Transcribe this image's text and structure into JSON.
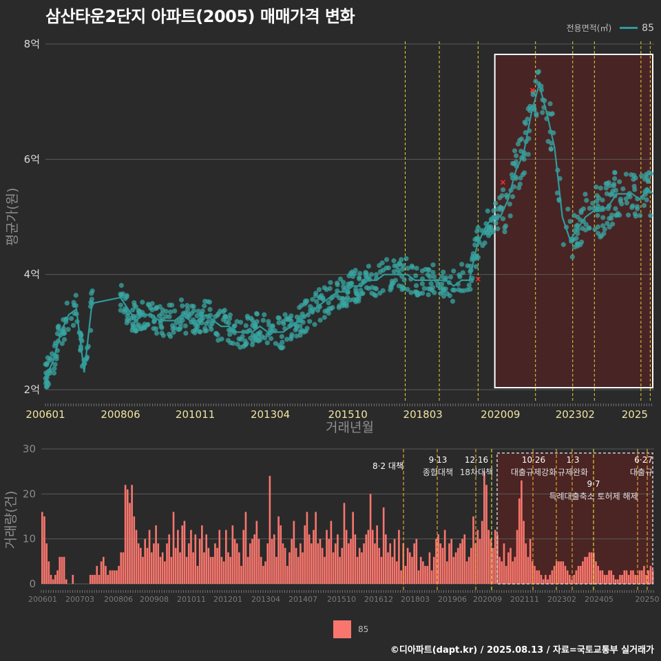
{
  "title": "삼산타운2단지 아파트(2005) 매매가격 변화",
  "legend_top": {
    "title": "전용면적(㎡)",
    "series": "85",
    "color": "#2e9c9c"
  },
  "legend_bottom": {
    "series": "85",
    "color": "#f8766d"
  },
  "credit": "©디아파트(dapt.kr) / 2025.08.13 / 자료=국토교통부 실거래가",
  "chart_data": [
    {
      "type": "line",
      "ylabel": "평균가(원)",
      "xlabel": "거래년월",
      "ylim": [
        2,
        8
      ],
      "y_unit": "억",
      "yticks": [
        2,
        4,
        6,
        8
      ],
      "ytick_labels": [
        "2억",
        "4억",
        "6억",
        "8억"
      ],
      "xticks": [
        "200601",
        "200806",
        "201011",
        "201304",
        "201510",
        "201803",
        "202009",
        "202302",
        "2025"
      ],
      "xlim": [
        "2006-01",
        "2025-08"
      ],
      "grid": true,
      "series": [
        {
          "name": "85",
          "x": [
            "2006-01",
            "2006-04",
            "2006-07",
            "2006-10",
            "2007-01",
            "2007-04",
            "2007-07",
            "2008-06",
            "2008-09",
            "2008-12",
            "2009-03",
            "2009-06",
            "2009-09",
            "2009-12",
            "2010-03",
            "2010-06",
            "2010-09",
            "2010-12",
            "2011-03",
            "2011-06",
            "2011-09",
            "2011-12",
            "2012-03",
            "2012-06",
            "2012-09",
            "2012-12",
            "2013-03",
            "2013-06",
            "2013-09",
            "2013-12",
            "2014-03",
            "2014-06",
            "2014-09",
            "2014-12",
            "2015-03",
            "2015-06",
            "2015-09",
            "2015-12",
            "2016-03",
            "2016-06",
            "2016-09",
            "2016-12",
            "2017-03",
            "2017-06",
            "2017-09",
            "2017-12",
            "2018-03",
            "2018-06",
            "2018-09",
            "2018-12",
            "2019-03",
            "2019-06",
            "2019-09",
            "2019-12",
            "2020-03",
            "2020-06",
            "2020-09",
            "2020-12",
            "2021-03",
            "2021-06",
            "2021-09",
            "2021-12",
            "2022-03",
            "2022-06",
            "2022-09",
            "2022-12",
            "2023-03",
            "2023-06",
            "2023-09",
            "2023-12",
            "2024-03",
            "2024-06",
            "2024-09",
            "2024-12",
            "2025-03",
            "2025-06",
            "2025-08"
          ],
          "values": [
            2.2,
            2.5,
            3.0,
            3.3,
            3.4,
            2.3,
            3.5,
            3.6,
            3.4,
            3.2,
            3.3,
            3.3,
            3.2,
            3.2,
            3.2,
            3.3,
            3.2,
            3.2,
            3.3,
            3.2,
            3.1,
            3.1,
            3.0,
            3.0,
            3.0,
            3.1,
            3.0,
            3.0,
            3.0,
            3.1,
            3.2,
            3.3,
            3.4,
            3.5,
            3.6,
            3.7,
            3.7,
            3.8,
            3.8,
            3.9,
            3.9,
            4.0,
            4.0,
            4.0,
            4.0,
            3.9,
            3.9,
            3.9,
            3.9,
            3.9,
            3.8,
            3.9,
            3.9,
            4.5,
            4.8,
            5.0,
            5.0,
            5.3,
            5.8,
            6.1,
            6.8,
            7.3,
            6.8,
            6.2,
            5.0,
            4.6,
            4.8,
            5.0,
            5.1,
            5.1,
            5.2,
            5.4,
            5.4,
            5.4,
            5.3,
            5.5,
            5.4
          ]
        }
      ],
      "policy_lines": [
        "8·2 대책",
        "9·13 종합대책",
        "12·16 18차대책",
        "10·26",
        "1·3",
        "6·27"
      ],
      "highlight_region": [
        "2020-09",
        "2025-08"
      ]
    },
    {
      "type": "bar",
      "ylabel": "거래량(건)",
      "ylim": [
        0,
        30
      ],
      "yticks": [
        0,
        10,
        20,
        30
      ],
      "xticks": [
        "200601",
        "200703",
        "200806",
        "200908",
        "201011",
        "201201",
        "201304",
        "201407",
        "201510",
        "201612",
        "201803",
        "201906",
        "202009",
        "202111",
        "202302",
        "202405",
        "20250"
      ],
      "series": [
        {
          "name": "85",
          "values": [
            16,
            15,
            9,
            5,
            2,
            1,
            2,
            3,
            6,
            6,
            6,
            1,
            0,
            0,
            2,
            0,
            0,
            0,
            0,
            0,
            0,
            0,
            2,
            2,
            2,
            4,
            2,
            5,
            6,
            4,
            2,
            3,
            3,
            3,
            3,
            4,
            7,
            7,
            22,
            21,
            18,
            22,
            15,
            12,
            9,
            8,
            6,
            10,
            8,
            12,
            7,
            9,
            13,
            9,
            6,
            7,
            5,
            9,
            11,
            6,
            16,
            8,
            12,
            7,
            13,
            14,
            6,
            9,
            12,
            7,
            11,
            4,
            10,
            13,
            7,
            11,
            8,
            6,
            6,
            9,
            8,
            12,
            6,
            5,
            12,
            7,
            6,
            13,
            10,
            9,
            7,
            4,
            12,
            16,
            6,
            9,
            10,
            11,
            14,
            10,
            6,
            4,
            5,
            9,
            24,
            10,
            11,
            6,
            15,
            13,
            9,
            8,
            4,
            7,
            10,
            14,
            8,
            6,
            9,
            7,
            13,
            16,
            11,
            9,
            12,
            16,
            9,
            10,
            8,
            6,
            12,
            10,
            14,
            7,
            9,
            11,
            6,
            8,
            18,
            12,
            9,
            10,
            16,
            11,
            6,
            8,
            7,
            9,
            11,
            12,
            20,
            12,
            9,
            13,
            8,
            6,
            17,
            11,
            7,
            9,
            6,
            10,
            5,
            12,
            3,
            9,
            4,
            8,
            7,
            6,
            9,
            10,
            3,
            6,
            5,
            4,
            4,
            7,
            3,
            6,
            10,
            11,
            9,
            8,
            12,
            5,
            9,
            10,
            6,
            7,
            8,
            9,
            10,
            11,
            5,
            6,
            8,
            15,
            9,
            12,
            10,
            14,
            25,
            22,
            12,
            10,
            8,
            12,
            11,
            6,
            5,
            9,
            4,
            7,
            8,
            5,
            6,
            12,
            19,
            23,
            14,
            9,
            6,
            10,
            5,
            4,
            3,
            3,
            2,
            1,
            2,
            1,
            2,
            3,
            4,
            5,
            5,
            5,
            5,
            4,
            3,
            2,
            1,
            2,
            3,
            4,
            4,
            5,
            6,
            6,
            7,
            7,
            7,
            5,
            4,
            3,
            3,
            2,
            2,
            3,
            3,
            2,
            1,
            1,
            2,
            2,
            3,
            3,
            2,
            3,
            3,
            2,
            2,
            3,
            3,
            4,
            2,
            3,
            4,
            3
          ]
        }
      ],
      "policy_labels": [
        {
          "date": "8·2 대책",
          "name": ""
        },
        {
          "date": "9·13",
          "name": "종합대책"
        },
        {
          "date": "12·16",
          "name": "18차대책"
        },
        {
          "date": "10·26",
          "name": "대출규제강화"
        },
        {
          "date": "1·3",
          "name": "규제완화"
        },
        {
          "date": "9·7",
          "name": "특례대출축소 토허제 해제"
        },
        {
          "date": "6·27",
          "name": "대출규"
        }
      ]
    }
  ]
}
